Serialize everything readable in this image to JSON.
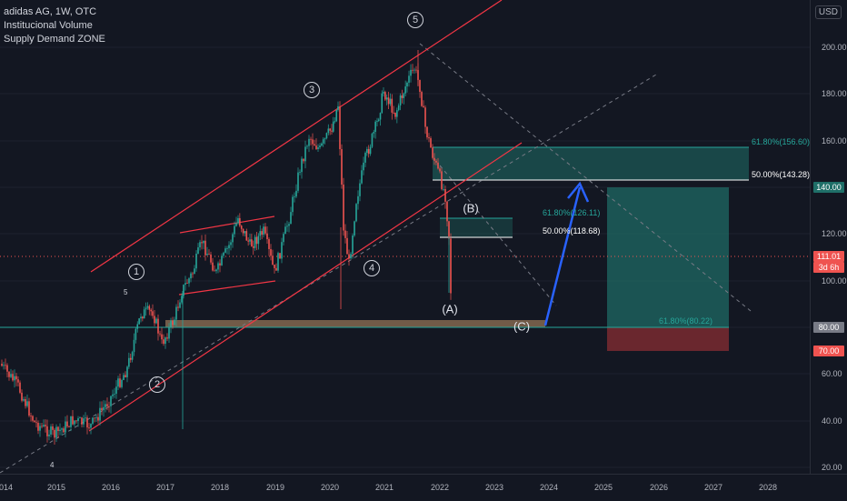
{
  "legend": {
    "title": "adidas AG, 1W, OTC",
    "indicator1": "Institucional Volume",
    "indicator2": "Supply Demand ZONE"
  },
  "currency_button": "USD",
  "price_axis": [
    "200.00",
    "180.00",
    "160.00",
    "140.00",
    "120.00",
    "100.00",
    "80.00",
    "60.00",
    "40.00",
    "20.00"
  ],
  "time_axis": [
    "2014",
    "2015",
    "2016",
    "2017",
    "2018",
    "2019",
    "2020",
    "2021",
    "2022",
    "2023",
    "2024",
    "2025",
    "2026",
    "2027",
    "2028"
  ],
  "price_labels": {
    "tp": "140.00",
    "current": "111.01",
    "countdown": "3d 6h",
    "entry": "80.00",
    "stop": "70.00"
  },
  "wave_labels": {
    "w1": "1",
    "w2": "2",
    "w3": "3",
    "w4": "4",
    "w5": "5",
    "B": "(B)",
    "A": "(A)",
    "C": "(C)",
    "small5": "5",
    "small4": "4"
  },
  "fib_labels": {
    "upper_618": "61.80%(156.60)",
    "upper_50": "50.00%(143.28)",
    "mid_618": "61.80%(126.11)",
    "mid_50": "50.00%(118.68)",
    "low_618": "61.80%(80.22)"
  },
  "colors": {
    "background": "#131722",
    "up_candle": "#26a69a",
    "down_candle": "#ef5350",
    "channel": "#f23645",
    "zone": "#1f6f68",
    "stop_zone": "#7a2a30",
    "arrow": "#2962ff"
  }
}
